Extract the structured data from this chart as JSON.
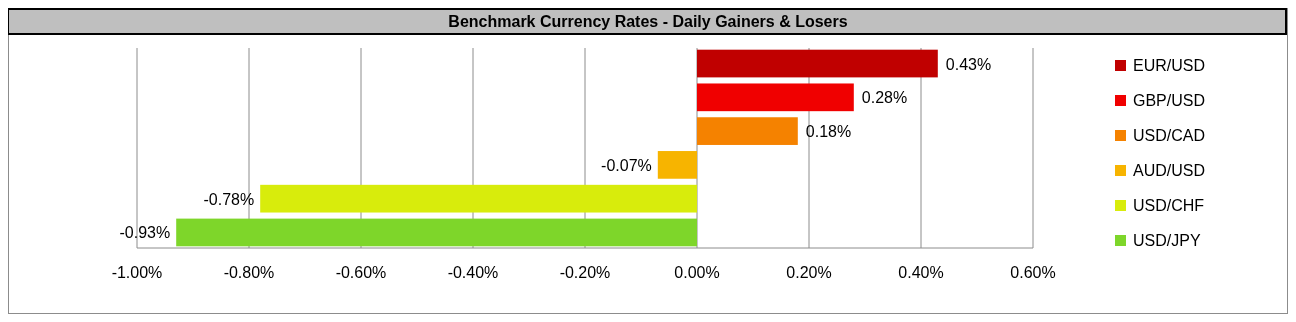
{
  "chart_data": {
    "type": "bar",
    "orientation": "horizontal",
    "title": "Benchmark Currency Rates - Daily Gainers & Losers",
    "categories": [
      null,
      null,
      null,
      null,
      null,
      null
    ],
    "series": [
      {
        "name": "EUR/USD",
        "color": "#c00000",
        "values": [
          0.43,
          null,
          null,
          null,
          null,
          null
        ],
        "value_labels": [
          "0.43%",
          null,
          null,
          null,
          null,
          null
        ]
      },
      {
        "name": "GBP/USD",
        "color": "#f00000",
        "values": [
          null,
          0.28,
          null,
          null,
          null,
          null
        ],
        "value_labels": [
          null,
          "0.28%",
          null,
          null,
          null,
          null
        ]
      },
      {
        "name": "USD/CAD",
        "color": "#f58200",
        "values": [
          null,
          null,
          0.18,
          null,
          null,
          null
        ],
        "value_labels": [
          null,
          null,
          "0.18%",
          null,
          null,
          null
        ]
      },
      {
        "name": "AUD/USD",
        "color": "#f7b400",
        "values": [
          null,
          null,
          null,
          -0.07,
          null,
          null
        ],
        "value_labels": [
          null,
          null,
          null,
          "-0.07%",
          null,
          null
        ]
      },
      {
        "name": "USD/CHF",
        "color": "#d8ec0c",
        "values": [
          null,
          null,
          null,
          null,
          -0.78,
          null
        ],
        "value_labels": [
          null,
          null,
          null,
          null,
          "-0.78%",
          null
        ]
      },
      {
        "name": "USD/JPY",
        "color": "#7ed62a",
        "values": [
          null,
          null,
          null,
          null,
          null,
          -0.93
        ],
        "value_labels": [
          null,
          null,
          null,
          null,
          null,
          "-0.93%"
        ]
      }
    ],
    "xlim": [
      -1.0,
      0.6
    ],
    "xticks": [
      {
        "value": -1.0,
        "label": "-1.00%"
      },
      {
        "value": -0.8,
        "label": "-0.80%"
      },
      {
        "value": -0.6,
        "label": "-0.60%"
      },
      {
        "value": -0.4,
        "label": "-0.40%"
      },
      {
        "value": -0.2,
        "label": "-0.20%"
      },
      {
        "value": 0,
        "label": "0.00%"
      },
      {
        "value": 0.2,
        "label": "0.20%"
      },
      {
        "value": 0.4,
        "label": "0.40%"
      },
      {
        "value": 0.6,
        "label": "0.60%"
      }
    ],
    "grid": "x",
    "legend": "right",
    "tick_labels": "x"
  }
}
